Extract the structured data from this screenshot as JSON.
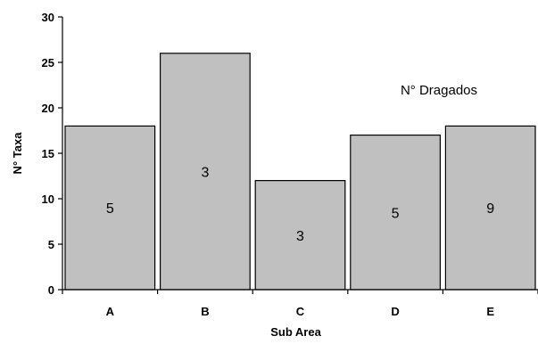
{
  "chart_data": {
    "type": "bar",
    "categories": [
      "A",
      "B",
      "C",
      "D",
      "E"
    ],
    "values": [
      18,
      26,
      12,
      17,
      18
    ],
    "bar_labels": [
      "5",
      "3",
      "3",
      "5",
      "9"
    ],
    "xlabel": "Sub Area",
    "ylabel": "N° Taxa",
    "ylim": [
      0,
      30
    ],
    "yticks": [
      0,
      5,
      10,
      15,
      20,
      25,
      30
    ],
    "annotation": "N° Dragados",
    "grid": false,
    "bar_color": "#c0c0c0",
    "bar_edge_color": "#000000"
  }
}
